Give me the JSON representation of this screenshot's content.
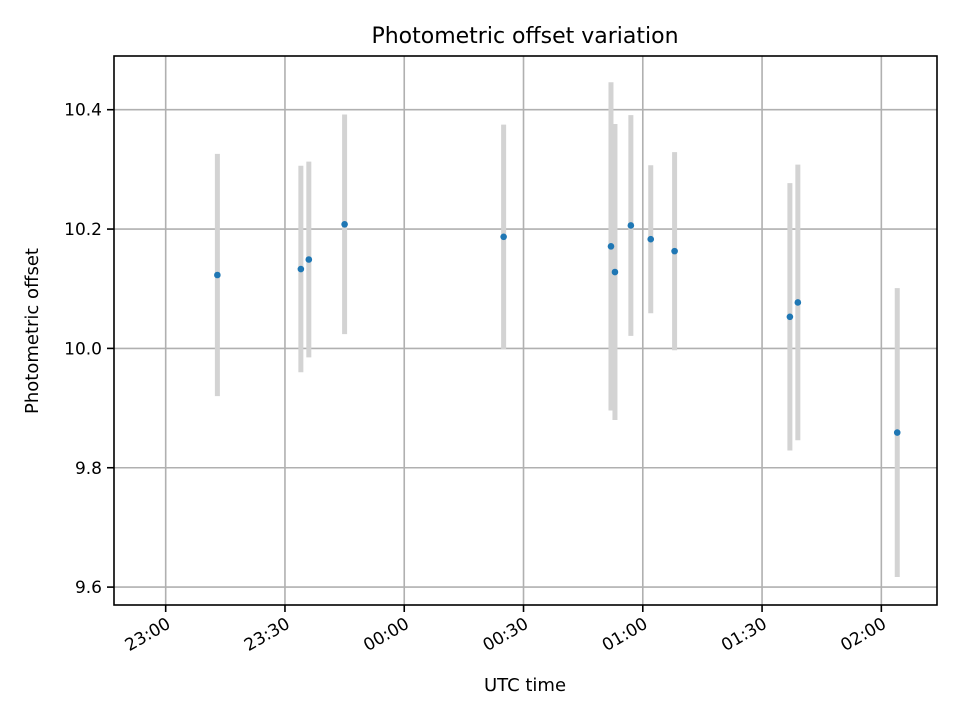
{
  "chart_data": {
    "type": "scatter",
    "title": "Photometric offset variation",
    "xlabel": "UTC time",
    "ylabel": "Photometric offset",
    "x_axis_type": "time",
    "xlim": [
      "22:47",
      "02:14"
    ],
    "ylim": [
      9.57,
      10.49
    ],
    "x_ticks": [
      "23:00",
      "23:30",
      "00:00",
      "00:30",
      "01:00",
      "01:30",
      "02:00"
    ],
    "y_ticks": [
      9.6,
      9.8,
      10.0,
      10.2,
      10.4
    ],
    "grid": true,
    "errorbar_color": "#d3d3d3",
    "point_color": "#1f77b4",
    "points": [
      {
        "x": "23:13",
        "y": 10.123,
        "yerr": 0.203
      },
      {
        "x": "23:34",
        "y": 10.133,
        "yerr": 0.173
      },
      {
        "x": "23:36",
        "y": 10.149,
        "yerr": 0.164
      },
      {
        "x": "23:45",
        "y": 10.208,
        "yerr": 0.184
      },
      {
        "x": "00:25",
        "y": 10.187,
        "yerr": 0.188
      },
      {
        "x": "00:52",
        "y": 10.171,
        "yerr": 0.275
      },
      {
        "x": "00:53",
        "y": 10.128,
        "yerr": 0.248
      },
      {
        "x": "00:57",
        "y": 10.206,
        "yerr": 0.185
      },
      {
        "x": "01:02",
        "y": 10.183,
        "yerr": 0.124
      },
      {
        "x": "01:08",
        "y": 10.163,
        "yerr": 0.166
      },
      {
        "x": "01:37",
        "y": 10.053,
        "yerr": 0.224
      },
      {
        "x": "01:39",
        "y": 10.077,
        "yerr": 0.231
      },
      {
        "x": "02:04",
        "y": 9.859,
        "yerr": 0.242
      }
    ]
  }
}
